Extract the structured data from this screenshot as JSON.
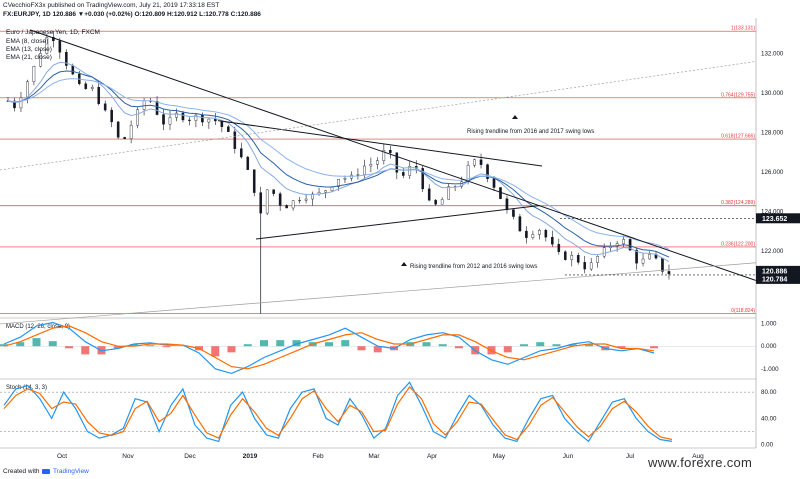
{
  "header": {
    "publisher_user": "CVecchioFX3x",
    "publisher_text": "published on TradingView.com, July 21, 2019 17:33:18 EST",
    "symbol_line": "FX:EURJPY, 1D 120.886 ▼+0.030 (+0.02%) O:120.809 H:120.912 L:120.778 C:120.886",
    "title": "Euro / Japanese Yen, 1D, FXCM",
    "ema_labels": [
      "EMA (8, close)",
      "EMA (13, close)",
      "EMA (21, close)"
    ]
  },
  "footer": {
    "created_with": "Created with",
    "brand": "TradingView",
    "watermark": "www.forexre.com"
  },
  "colors": {
    "up": "#131722",
    "ema8": "#87aade",
    "ema13": "#2962a8",
    "ema21": "#8bb3f0",
    "fib": "#e53935",
    "macd_line": "#2196f3",
    "signal_line": "#ff6d00",
    "hist_pos": "#26a69a",
    "hist_neg": "#ef5350",
    "stoch_k": "#2196f3",
    "stoch_d": "#ff6d00"
  },
  "chart_data": [
    {
      "type": "candlestick",
      "title": "Euro / Japanese Yen, 1D, FXCM",
      "ylim": [
        118.6,
        133.8
      ],
      "y_ticks": [
        122.0,
        124.0,
        126.0,
        128.0,
        130.0,
        132.0
      ],
      "x_ticks": [
        "Oct",
        "Nov",
        "Dec",
        "2019",
        "Feb",
        "Mar",
        "Apr",
        "May",
        "Jun",
        "Jul",
        "Aug"
      ],
      "price_path": [
        [
          0,
          129.6
        ],
        [
          3,
          129.2
        ],
        [
          6,
          129.6
        ],
        [
          10,
          130.2
        ],
        [
          14,
          131.0
        ],
        [
          18,
          131.6
        ],
        [
          22,
          132.6
        ],
        [
          26,
          133.0
        ],
        [
          30,
          132.6
        ],
        [
          34,
          131.8
        ],
        [
          38,
          131.2
        ],
        [
          42,
          130.6
        ],
        [
          46,
          130.0
        ],
        [
          50,
          130.4
        ],
        [
          54,
          130.0
        ],
        [
          58,
          129.2
        ],
        [
          62,
          128.8
        ],
        [
          66,
          128.2
        ],
        [
          70,
          127.2
        ],
        [
          74,
          128.2
        ],
        [
          78,
          128.6
        ],
        [
          82,
          129.4
        ],
        [
          86,
          129.8
        ],
        [
          90,
          129.4
        ],
        [
          94,
          128.6
        ],
        [
          98,
          128.4
        ],
        [
          102,
          128.8
        ],
        [
          106,
          129.0
        ],
        [
          110,
          128.6
        ],
        [
          114,
          128.8
        ],
        [
          118,
          128.8
        ],
        [
          122,
          128.6
        ],
        [
          126,
          128.8
        ],
        [
          130,
          128.4
        ],
        [
          134,
          128.2
        ],
        [
          138,
          127.6
        ],
        [
          142,
          127.0
        ],
        [
          146,
          126.4
        ],
        [
          150,
          125.6
        ],
        [
          154,
          124.6
        ],
        [
          156,
          123.8
        ],
        [
          158,
          125.0
        ],
        [
          162,
          125.2
        ],
        [
          166,
          124.6
        ],
        [
          170,
          124.2
        ],
        [
          174,
          124.4
        ],
        [
          178,
          124.6
        ],
        [
          182,
          124.8
        ],
        [
          186,
          124.8
        ],
        [
          190,
          124.8
        ],
        [
          194,
          125.0
        ],
        [
          198,
          125.2
        ],
        [
          202,
          125.6
        ],
        [
          206,
          125.8
        ],
        [
          210,
          125.6
        ],
        [
          214,
          125.8
        ],
        [
          218,
          126.2
        ],
        [
          222,
          126.4
        ],
        [
          226,
          126.4
        ],
        [
          230,
          126.8
        ],
        [
          234,
          127.2
        ],
        [
          238,
          126.4
        ],
        [
          242,
          125.6
        ],
        [
          246,
          126.0
        ],
        [
          250,
          126.4
        ],
        [
          254,
          126.0
        ],
        [
          258,
          124.6
        ],
        [
          262,
          124.2
        ],
        [
          266,
          124.4
        ],
        [
          270,
          124.8
        ],
        [
          274,
          125.4
        ],
        [
          278,
          125.2
        ],
        [
          282,
          126.0
        ],
        [
          286,
          126.4
        ],
        [
          290,
          126.6
        ],
        [
          294,
          126.2
        ],
        [
          298,
          125.4
        ],
        [
          302,
          125.2
        ],
        [
          306,
          124.2
        ],
        [
          310,
          123.8
        ],
        [
          314,
          123.4
        ],
        [
          318,
          122.8
        ],
        [
          322,
          122.8
        ],
        [
          326,
          123.2
        ],
        [
          330,
          123.0
        ],
        [
          334,
          122.4
        ],
        [
          338,
          122.0
        ],
        [
          342,
          121.6
        ],
        [
          346,
          121.8
        ],
        [
          350,
          121.6
        ],
        [
          354,
          121.4
        ],
        [
          358,
          121.0
        ],
        [
          362,
          121.6
        ],
        [
          366,
          121.8
        ],
        [
          370,
          122.2
        ],
        [
          374,
          122.4
        ],
        [
          378,
          122.6
        ],
        [
          382,
          122.4
        ],
        [
          386,
          121.6
        ],
        [
          390,
          121.4
        ],
        [
          394,
          121.6
        ],
        [
          398,
          121.8
        ],
        [
          402,
          121.2
        ],
        [
          406,
          120.9
        ],
        [
          409,
          120.886
        ]
      ],
      "fib_levels": [
        {
          "label": "1(133.131)",
          "value": 133.131
        },
        {
          "label": "0.764(129.755)",
          "value": 129.755
        },
        {
          "label": "0.618(127.666)",
          "value": 127.666
        },
        {
          "label": "0.382(124.289)",
          "value": 124.289
        },
        {
          "label": "0.236(122.200)",
          "value": 122.2
        },
        {
          "label": "0(118.824)",
          "value": 118.824
        }
      ],
      "price_labels": [
        {
          "text": "123.652",
          "value": 123.652
        },
        {
          "text": "120.886",
          "value": 120.886
        },
        {
          "text": "120.784",
          "value": 120.784
        }
      ],
      "annotations": [
        "Rising trendline from 2016 and 2017 swing lows",
        "Rising trendline from 2012 and 2016 swing lows"
      ]
    },
    {
      "type": "line",
      "title": "MACD (12, 26, close, 9)",
      "ylim": [
        -1.45,
        1.25
      ],
      "y_ticks": [
        "1.000",
        "0.000",
        "-1.000"
      ],
      "series": [
        {
          "name": "MACD",
          "values": [
            0.1,
            0.4,
            0.9,
            1.05,
            0.8,
            0.2,
            -0.2,
            -0.1,
            0.1,
            0.15,
            0.05,
            0.05,
            -0.3,
            -1.0,
            -1.2,
            -0.9,
            -0.5,
            -0.2,
            0.1,
            0.3,
            0.5,
            0.8,
            0.4,
            0.0,
            -0.1,
            0.3,
            0.5,
            0.6,
            0.4,
            -0.2,
            -0.6,
            -0.8,
            -0.5,
            -0.2,
            -0.1,
            0.1,
            0.2,
            -0.1,
            -0.2,
            -0.1,
            -0.3
          ]
        },
        {
          "name": "Signal",
          "values": [
            0.0,
            0.2,
            0.5,
            0.8,
            0.9,
            0.6,
            0.2,
            0.0,
            0.0,
            0.1,
            0.1,
            0.05,
            -0.1,
            -0.5,
            -0.9,
            -1.0,
            -0.8,
            -0.5,
            -0.2,
            0.1,
            0.3,
            0.5,
            0.6,
            0.3,
            0.1,
            0.1,
            0.3,
            0.5,
            0.5,
            0.2,
            -0.2,
            -0.5,
            -0.6,
            -0.4,
            -0.2,
            0.0,
            0.1,
            0.1,
            -0.1,
            -0.1,
            -0.2
          ]
        }
      ]
    },
    {
      "type": "line",
      "title": "Stoch (14, 3, 3)",
      "ylim": [
        -5,
        100
      ],
      "y_ticks": [
        "80.00",
        "40.00",
        "0.00"
      ],
      "series": [
        {
          "name": "%K",
          "values": [
            60,
            85,
            90,
            70,
            40,
            80,
            55,
            20,
            10,
            15,
            25,
            70,
            65,
            20,
            60,
            85,
            30,
            10,
            5,
            60,
            80,
            40,
            15,
            10,
            55,
            80,
            85,
            40,
            30,
            70,
            45,
            10,
            25,
            75,
            95,
            60,
            20,
            10,
            45,
            75,
            60,
            30,
            10,
            5,
            40,
            70,
            75,
            40,
            20,
            5,
            35,
            65,
            70,
            40,
            20,
            8,
            5
          ]
        },
        {
          "name": "%D",
          "values": [
            55,
            75,
            85,
            78,
            55,
            65,
            62,
            35,
            18,
            14,
            20,
            55,
            66,
            35,
            48,
            75,
            45,
            18,
            10,
            45,
            70,
            50,
            25,
            14,
            40,
            70,
            82,
            55,
            35,
            60,
            50,
            20,
            22,
            62,
            88,
            70,
            32,
            15,
            35,
            65,
            62,
            38,
            15,
            8,
            30,
            60,
            72,
            50,
            28,
            12,
            28,
            55,
            66,
            50,
            28,
            12,
            8
          ]
        }
      ]
    }
  ]
}
